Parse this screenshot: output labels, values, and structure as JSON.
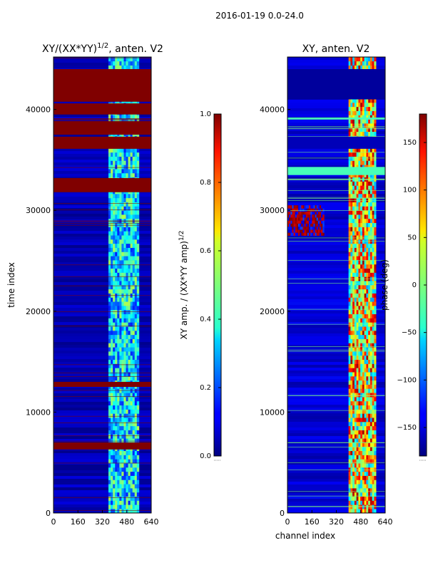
{
  "figure": {
    "suptitle": "2016-01-19 0.0-24.0"
  },
  "chart_data": [
    {
      "type": "heatmap",
      "title_main": "XY/(XX*YY)",
      "title_exp": "1/2",
      "title_tail": ", anten. V2",
      "xlabel": "",
      "ylabel": "time index",
      "xlim": [
        0,
        640
      ],
      "ylim": [
        0,
        45200
      ],
      "xticks": [
        0,
        160,
        320,
        480,
        640
      ],
      "yticks": [
        0,
        10000,
        20000,
        30000,
        40000
      ],
      "colormap": "jet",
      "colorbar": {
        "label_main": "XY amp. / (XX*YY amp)",
        "label_exp": "1/2",
        "range": [
          0.0,
          1.0
        ],
        "ticks": [
          0.0,
          0.2,
          0.4,
          0.6,
          0.8,
          1.0
        ],
        "tick_labels": [
          "0.0",
          "0.2",
          "0.4",
          "0.6",
          "0.8",
          "1.0"
        ]
      },
      "background_value": 0.05,
      "saturated_bands": [
        {
          "y0": 6300,
          "y1": 7000,
          "value": 1.0
        },
        {
          "y0": 12500,
          "y1": 13000,
          "value": 1.0
        },
        {
          "y0": 31800,
          "y1": 33200,
          "value": 1.0
        },
        {
          "y0": 36100,
          "y1": 37300,
          "value": 1.0
        },
        {
          "y0": 37500,
          "y1": 38800,
          "value": 1.0
        },
        {
          "y0": 39000,
          "y1": 39100,
          "value": 1.0
        },
        {
          "y0": 39500,
          "y1": 40600,
          "value": 1.0
        },
        {
          "y0": 40800,
          "y1": 44000,
          "value": 1.0
        }
      ],
      "highlight_region": {
        "x0": 360,
        "x1": 560,
        "value_range": [
          0.15,
          0.55
        ]
      }
    },
    {
      "type": "heatmap",
      "title_main": "XY, anten. V2",
      "xlabel": "channel index",
      "ylabel": "",
      "xlim": [
        0,
        640
      ],
      "ylim": [
        0,
        45200
      ],
      "xticks": [
        0,
        160,
        320,
        480,
        640
      ],
      "yticks": [
        0,
        10000,
        20000,
        30000,
        40000
      ],
      "colormap": "jet",
      "colorbar": {
        "label_main": "phase (deg)",
        "range": [
          -180,
          180
        ],
        "ticks": [
          -150,
          -100,
          -50,
          0,
          50,
          100,
          150
        ],
        "tick_labels": [
          "−150",
          "−100",
          "−50",
          "0",
          "50",
          "100",
          "150"
        ]
      },
      "background_value": -150,
      "uniform_bands": [
        {
          "y0": 33500,
          "y1": 34300,
          "value": -20
        },
        {
          "y0": 36100,
          "y1": 37300,
          "value": -160
        },
        {
          "y0": 39000,
          "y1": 39200,
          "value": -20
        },
        {
          "y0": 41000,
          "y1": 44000,
          "value": -170
        }
      ],
      "highlight_region": {
        "x0": 400,
        "x1": 580,
        "value_range": [
          -80,
          170
        ]
      },
      "red_patch": {
        "x0": 0,
        "x1": 240,
        "y0": 27500,
        "y1": 30500
      }
    }
  ],
  "icons": {
    "colorbar_1_footer": "colorbar-offset-icon",
    "colorbar_2_footer": "colorbar-offset-icon"
  }
}
